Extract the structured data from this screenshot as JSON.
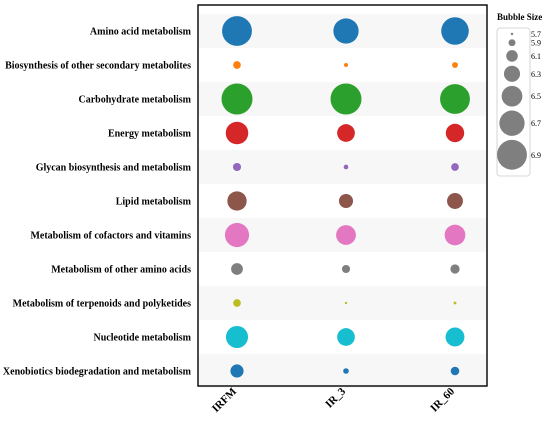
{
  "chart_data": {
    "type": "bubble",
    "categories": [
      "Amino acid metabolism",
      "Biosynthesis of other secondary metabolites",
      "Carbohydrate metabolism",
      "Energy metabolism",
      "Glycan biosynthesis and metabolism",
      "Lipid metabolism",
      "Metabolism of cofactors and vitamins",
      "Metabolism of other amino acids",
      "Metabolism of terpenoids and polyketides",
      "Nucleotide metabolism",
      "Xenobiotics biodegradation and metabolism"
    ],
    "samples": [
      "IRFM",
      "IR_3",
      "IR_60"
    ],
    "category_colors": [
      "#1f77b4",
      "#ff7f0e",
      "#2ca02c",
      "#d62728",
      "#9467bd",
      "#8c564b",
      "#e377c2",
      "#7f7f7f",
      "#bcbd22",
      "#17becf",
      "#1f77b4"
    ],
    "series": [
      {
        "name": "IRFM",
        "values": [
          6.9,
          5.93,
          6.95,
          6.58,
          5.95,
          6.44,
          6.65,
          6.11,
          5.93,
          6.56,
          6.17
        ]
      },
      {
        "name": "IR_3",
        "values": [
          6.7,
          5.77,
          6.95,
          6.37,
          5.8,
          6.21,
          6.46,
          5.95,
          5.7,
          6.37,
          5.84
        ]
      },
      {
        "name": "IR_60",
        "values": [
          6.8,
          5.85,
          6.9,
          6.4,
          5.93,
          6.29,
          6.5,
          6.0,
          5.72,
          6.42,
          5.97
        ]
      }
    ],
    "legend": {
      "title": "Bubble Size",
      "values": [
        5.7,
        5.9,
        6.1,
        6.3,
        6.5,
        6.7,
        6.9
      ],
      "labels": [
        "5.7",
        "5.9",
        "6.1",
        "6.3",
        "6.5",
        "6.7",
        "6.9"
      ],
      "placement": "right"
    },
    "row_shading": "alternating",
    "grid": false
  }
}
